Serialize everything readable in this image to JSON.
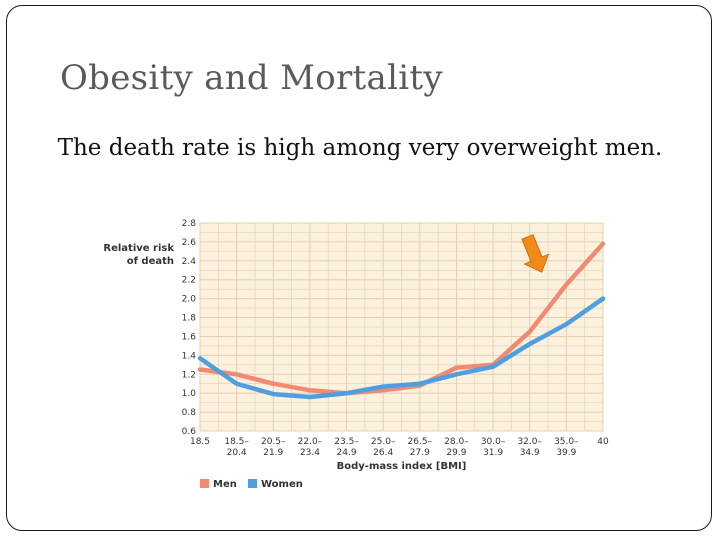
{
  "slide": {
    "title": "Obesity and Mortality",
    "body": "The death rate is high among very overweight men."
  },
  "chart_data": {
    "type": "line",
    "ylabel_lines": [
      "Relative risk",
      "of death"
    ],
    "xlabel": "Body-mass index [BMI]",
    "ylim": [
      0.6,
      2.8
    ],
    "yticks": [
      "0.6",
      "0.8",
      "1.0",
      "1.2",
      "1.4",
      "1.6",
      "1.8",
      "2.0",
      "2.2",
      "2.4",
      "2.6",
      "2.8"
    ],
    "categories": [
      [
        "18.5",
        ""
      ],
      [
        "18.5–",
        "20.4"
      ],
      [
        "20.5–",
        "21.9"
      ],
      [
        "22.0–",
        "23.4"
      ],
      [
        "23.5–",
        "24.9"
      ],
      [
        "25.0–",
        "26.4"
      ],
      [
        "26.5–",
        "27.9"
      ],
      [
        "28.0–",
        "29.9"
      ],
      [
        "30.0–",
        "31.9"
      ],
      [
        "32.0–",
        "34.9"
      ],
      [
        "35.0–",
        "39.9"
      ],
      [
        "40",
        ""
      ]
    ],
    "series": [
      {
        "name": "Men",
        "color": "#f08a73",
        "values": [
          1.25,
          1.2,
          1.1,
          1.03,
          1.0,
          1.03,
          1.08,
          1.27,
          1.3,
          1.65,
          2.15,
          2.58
        ]
      },
      {
        "name": "Women",
        "color": "#4f9fe0",
        "values": [
          1.37,
          1.1,
          0.99,
          0.96,
          1.0,
          1.07,
          1.1,
          1.2,
          1.28,
          1.52,
          1.73,
          2.0
        ]
      }
    ],
    "grid": true,
    "background": "#fbf1dd",
    "grid_color": "#e3cfb4",
    "legend_position": "bottom-left",
    "annotation": {
      "type": "arrow",
      "color": "#f18a19",
      "points_to": "Men"
    }
  }
}
